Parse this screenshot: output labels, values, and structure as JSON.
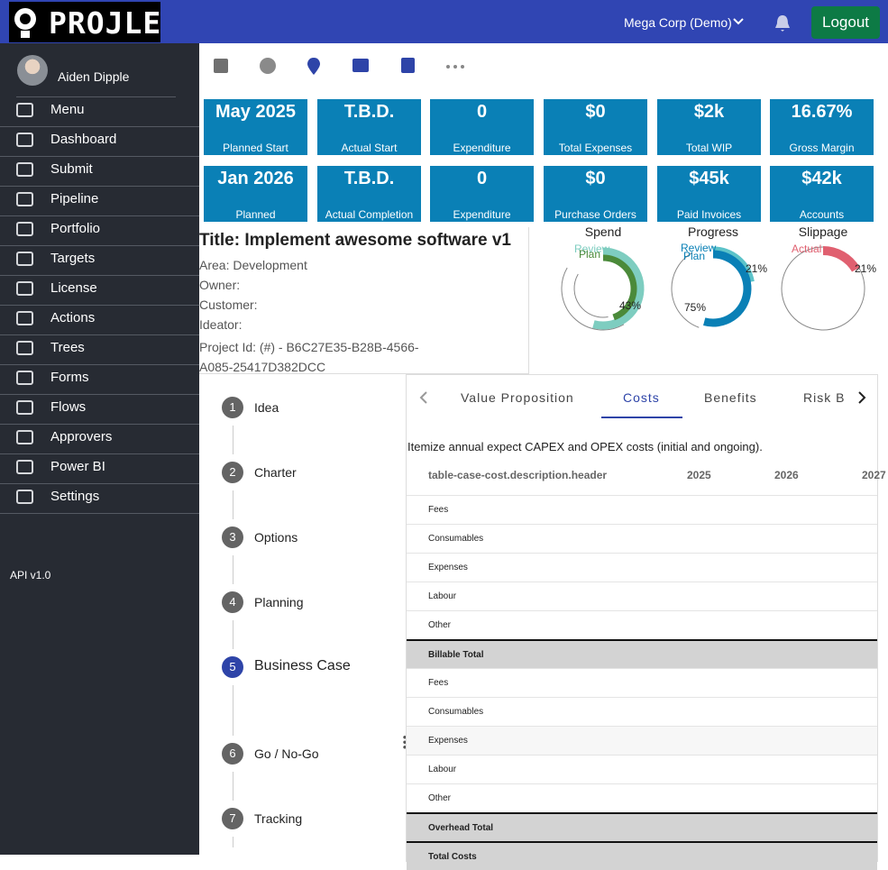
{
  "header": {
    "logo": "PROJLE",
    "organization": "Mega Corp (Demo)",
    "logout": "Logout"
  },
  "sidebar": {
    "user": "Aiden Dipple",
    "items": [
      "Menu",
      "Dashboard",
      "Submit",
      "Pipeline",
      "Portfolio",
      "Targets",
      "License",
      "Actions",
      "Trees",
      "Forms",
      "Flows",
      "Approvers",
      "Power BI",
      "Settings"
    ],
    "version": "API v1.0"
  },
  "kpis": [
    {
      "value": "May 2025",
      "label": "Planned Start"
    },
    {
      "value": "T.B.D.",
      "label": "Actual Start"
    },
    {
      "value": "0",
      "label": "Expenditure"
    },
    {
      "value": "$0",
      "label": "Total Expenses"
    },
    {
      "value": "$2k",
      "label": "Total WIP"
    },
    {
      "value": "16.67%",
      "label": "Gross Margin"
    },
    {
      "value": "Jan 2026",
      "label": "Planned"
    },
    {
      "value": "T.B.D.",
      "label": "Actual Completion"
    },
    {
      "value": "0",
      "label": "Expenditure"
    },
    {
      "value": "$0",
      "label": "Purchase Orders"
    },
    {
      "value": "$45k",
      "label": "Paid Invoices"
    },
    {
      "value": "$42k",
      "label": "Accounts"
    }
  ],
  "project": {
    "title": "Title: Implement awesome software v1",
    "area": "Area: Development",
    "owner": "Owner:",
    "customer": "Customer:",
    "ideator": "Ideator:",
    "project_id": "Project Id: (#) - B6C27E35-B28B-4566-A085-25417D382DCC"
  },
  "gauges": [
    {
      "title": "Spend",
      "labels": [
        "Review",
        "Plan",
        "43%"
      ]
    },
    {
      "title": "Progress",
      "labels": [
        "Review",
        "Plan",
        "21%",
        "75%"
      ]
    },
    {
      "title": "Slippage",
      "labels": [
        "Actual",
        "21%"
      ]
    }
  ],
  "steps": [
    {
      "number": 1,
      "label": "Idea"
    },
    {
      "number": 2,
      "label": "Charter"
    },
    {
      "number": 3,
      "label": "Options"
    },
    {
      "number": 4,
      "label": "Planning"
    },
    {
      "number": 5,
      "label": "Business Case"
    },
    {
      "number": 6,
      "label": "Go / No-Go"
    },
    {
      "number": 7,
      "label": "Tracking"
    }
  ],
  "active_step": 4,
  "tabs": [
    "Value Proposition",
    "Costs",
    "Benefits",
    "Risk B"
  ],
  "active_tab": 1,
  "cost_table": {
    "description": "Itemize annual expect CAPEX and OPEX costs (initial and ongoing).",
    "columns": [
      "table-case-cost.description.header",
      "2025",
      "2026",
      "2027"
    ],
    "rows": [
      {
        "label": "Fees"
      },
      {
        "label": "Consumables"
      },
      {
        "label": "Expenses"
      },
      {
        "label": "Labour"
      },
      {
        "label": "Other"
      },
      {
        "label": "Billable Total",
        "total": true
      },
      {
        "label": "Fees"
      },
      {
        "label": "Consumables"
      },
      {
        "label": "Expenses"
      },
      {
        "label": "Labour"
      },
      {
        "label": "Other"
      },
      {
        "label": "Overhead Total",
        "total": true
      },
      {
        "label": "Total Costs",
        "total": true
      }
    ]
  }
}
